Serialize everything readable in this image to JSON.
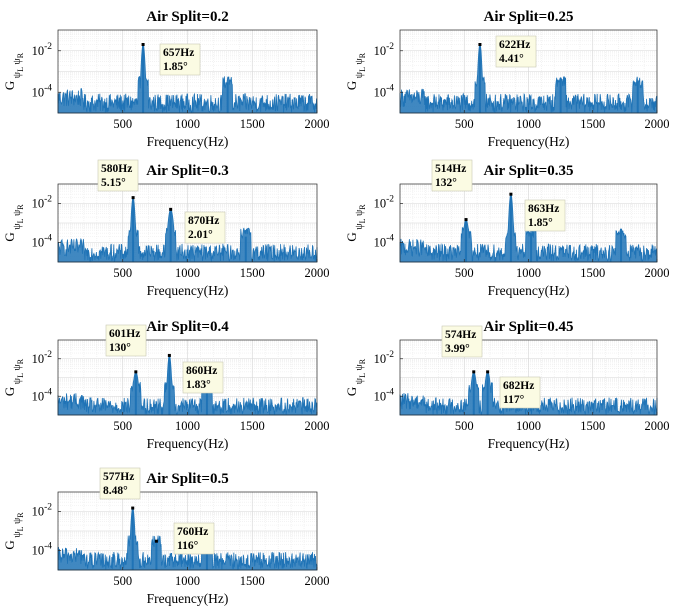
{
  "chart_data": [
    {
      "type": "line",
      "title": "Air Split=0.2",
      "xlabel": "Frequency(Hz)",
      "ylabel": "G",
      "ylabel_sub": "ψ L ψ R",
      "xticks": [
        "500",
        "1000",
        "1500",
        "2000"
      ],
      "yticks": [
        "10-2",
        "10-4"
      ],
      "xlim": [
        0,
        2000
      ],
      "ylim": [
        1e-05,
        0.1
      ],
      "yscale": "log",
      "grid": true,
      "color": "#1f73b6",
      "peaks": [
        {
          "x": 657,
          "y": 0.02,
          "freq_label": "657Hz",
          "phase_label": "1.85°"
        },
        {
          "x": 1310,
          "y": 0.0003
        }
      ]
    },
    {
      "type": "line",
      "title": "Air Split=0.25",
      "xlabel": "Frequency(Hz)",
      "ylabel": "G",
      "ylabel_sub": "ψ L ψ R",
      "xticks": [
        "500",
        "1000",
        "1500",
        "2000"
      ],
      "yticks": [
        "10-2",
        "10-4"
      ],
      "xlim": [
        0,
        2000
      ],
      "ylim": [
        1e-05,
        0.1
      ],
      "yscale": "log",
      "grid": true,
      "color": "#1f73b6",
      "peaks": [
        {
          "x": 622,
          "y": 0.02,
          "freq_label": "622Hz",
          "phase_label": "4.41°"
        },
        {
          "x": 1250,
          "y": 0.0005
        },
        {
          "x": 1850,
          "y": 0.0003
        }
      ]
    },
    {
      "type": "line",
      "title": "Air Split=0.3",
      "xlabel": "Frequency(Hz)",
      "ylabel": "G",
      "ylabel_sub": "ψ L ψ R",
      "xticks": [
        "500",
        "1000",
        "1500",
        "2000"
      ],
      "yticks": [
        "10-2",
        "10-4"
      ],
      "xlim": [
        0,
        2000
      ],
      "ylim": [
        1e-05,
        0.1
      ],
      "yscale": "log",
      "grid": true,
      "color": "#1f73b6",
      "peaks": [
        {
          "x": 580,
          "y": 0.02,
          "freq_label": "580Hz",
          "phase_label": "5.15°"
        },
        {
          "x": 870,
          "y": 0.005,
          "freq_label": "870Hz",
          "phase_label": "2.01°"
        },
        {
          "x": 1450,
          "y": 0.0002
        }
      ]
    },
    {
      "type": "line",
      "title": "Air Split=0.35",
      "xlabel": "Frequency(Hz)",
      "ylabel": "G",
      "ylabel_sub": "ψ L ψ R",
      "xticks": [
        "500",
        "1000",
        "1500",
        "2000"
      ],
      "yticks": [
        "10-2",
        "10-4"
      ],
      "xlim": [
        0,
        2000
      ],
      "ylim": [
        1e-05,
        0.1
      ],
      "yscale": "log",
      "grid": true,
      "color": "#1f73b6",
      "peaks": [
        {
          "x": 514,
          "y": 0.0015,
          "freq_label": "514Hz",
          "phase_label": "132°"
        },
        {
          "x": 863,
          "y": 0.03,
          "freq_label": "863Hz",
          "phase_label": "1.85°"
        },
        {
          "x": 1020,
          "y": 0.0003
        },
        {
          "x": 1720,
          "y": 0.0005
        }
      ]
    },
    {
      "type": "line",
      "title": "Air Split=0.4",
      "xlabel": "Frequency(Hz)",
      "ylabel": "G",
      "ylabel_sub": "ψ L ψ R",
      "xticks": [
        "500",
        "1000",
        "1500",
        "2000"
      ],
      "yticks": [
        "10-2",
        "10-4"
      ],
      "xlim": [
        0,
        2000
      ],
      "ylim": [
        1e-05,
        0.1
      ],
      "yscale": "log",
      "grid": true,
      "color": "#1f73b6",
      "peaks": [
        {
          "x": 601,
          "y": 0.002,
          "freq_label": "601Hz",
          "phase_label": "130°"
        },
        {
          "x": 860,
          "y": 0.015,
          "freq_label": "860Hz",
          "phase_label": "1.83°"
        },
        {
          "x": 1150,
          "y": 0.0003
        }
      ]
    },
    {
      "type": "line",
      "title": "Air Split=0.45",
      "xlabel": "Frequency(Hz)",
      "ylabel": "G",
      "ylabel_sub": "ψ L ψ R",
      "xticks": [
        "500",
        "1000",
        "1500",
        "2000"
      ],
      "yticks": [
        "10-2",
        "10-4"
      ],
      "xlim": [
        0,
        2000
      ],
      "ylim": [
        1e-05,
        0.1
      ],
      "yscale": "log",
      "grid": true,
      "color": "#1f73b6",
      "peaks": [
        {
          "x": 574,
          "y": 0.002,
          "freq_label": "574Hz",
          "phase_label": "3.99°"
        },
        {
          "x": 682,
          "y": 0.002,
          "freq_label": "682Hz",
          "phase_label": "117°"
        }
      ]
    },
    {
      "type": "line",
      "title": "Air Split=0.5",
      "xlabel": "Frequency(Hz)",
      "ylabel": "G",
      "ylabel_sub": "ψ L ψ R",
      "xticks": [
        "500",
        "1000",
        "1500",
        "2000"
      ],
      "yticks": [
        "10-2",
        "10-4"
      ],
      "xlim": [
        0,
        2000
      ],
      "ylim": [
        1e-05,
        0.1
      ],
      "yscale": "log",
      "grid": true,
      "color": "#1f73b6",
      "peaks": [
        {
          "x": 577,
          "y": 0.015,
          "freq_label": "577Hz",
          "phase_label": "8.48°"
        },
        {
          "x": 760,
          "y": 0.0003,
          "freq_label": "760Hz",
          "phase_label": "116°"
        },
        {
          "x": 1150,
          "y": 0.0004
        }
      ]
    }
  ]
}
